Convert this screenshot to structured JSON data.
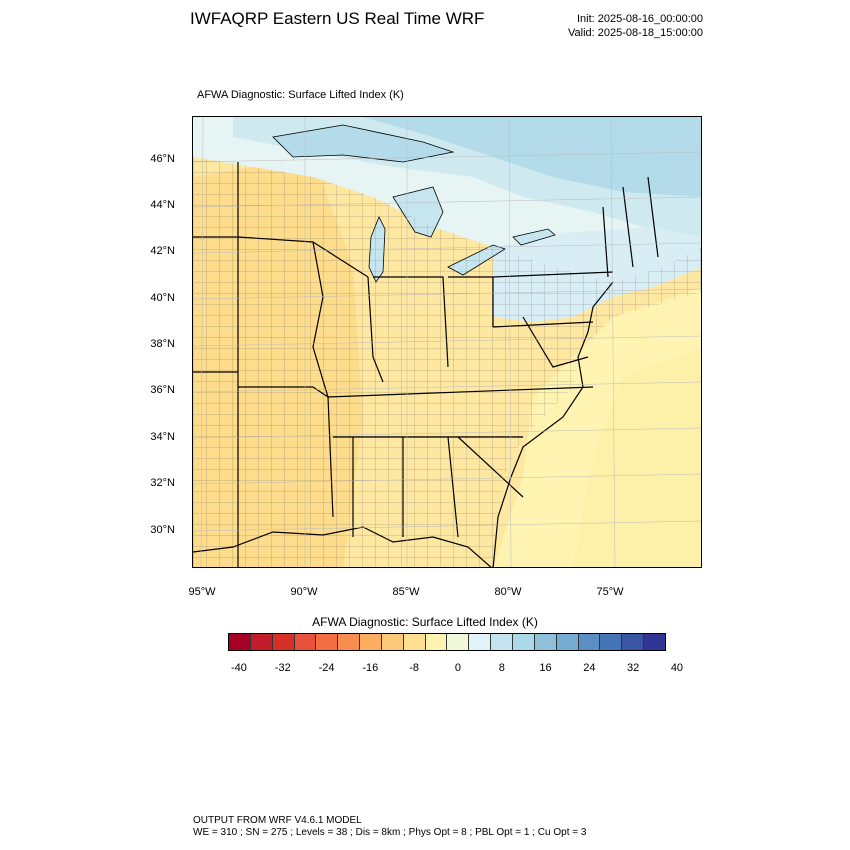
{
  "header": {
    "title": "IWFAQRP Eastern US Real Time WRF",
    "init": "Init: 2025-08-16_00:00:00",
    "valid": "Valid: 2025-08-18_15:00:00"
  },
  "map": {
    "subtitle": "AFWA Diagnostic: Surface Lifted Index   (K)",
    "lat_labels": [
      "46°N",
      "44°N",
      "42°N",
      "40°N",
      "38°N",
      "36°N",
      "34°N",
      "32°N",
      "30°N"
    ],
    "lon_labels": [
      "95°W",
      "90°W",
      "85°W",
      "80°W",
      "75°W"
    ]
  },
  "colorbar": {
    "title": "AFWA Diagnostic: Surface Lifted Index  (K)",
    "labels": [
      "-40",
      "-32",
      "-24",
      "-16",
      "-8",
      "0",
      "8",
      "16",
      "24",
      "32",
      "40"
    ],
    "colors": [
      "#a50026",
      "#c11c2b",
      "#d73027",
      "#e8513a",
      "#f46d43",
      "#f88d52",
      "#fbad60",
      "#fdc979",
      "#fee090",
      "#fef3b0",
      "#f2f9d8",
      "#e0f3f8",
      "#c3e4ef",
      "#abd9e9",
      "#8ec0da",
      "#74add1",
      "#5b8fc3",
      "#4575b4",
      "#3a56a3",
      "#313695"
    ]
  },
  "footer": {
    "line1": "OUTPUT FROM WRF V4.6.1 MODEL",
    "line2": "WE = 310 ; SN = 275 ; Levels = 38 ; Dis = 8km ; Phys Opt = 8 ; PBL Opt = 1 ; Cu Opt = 3"
  }
}
